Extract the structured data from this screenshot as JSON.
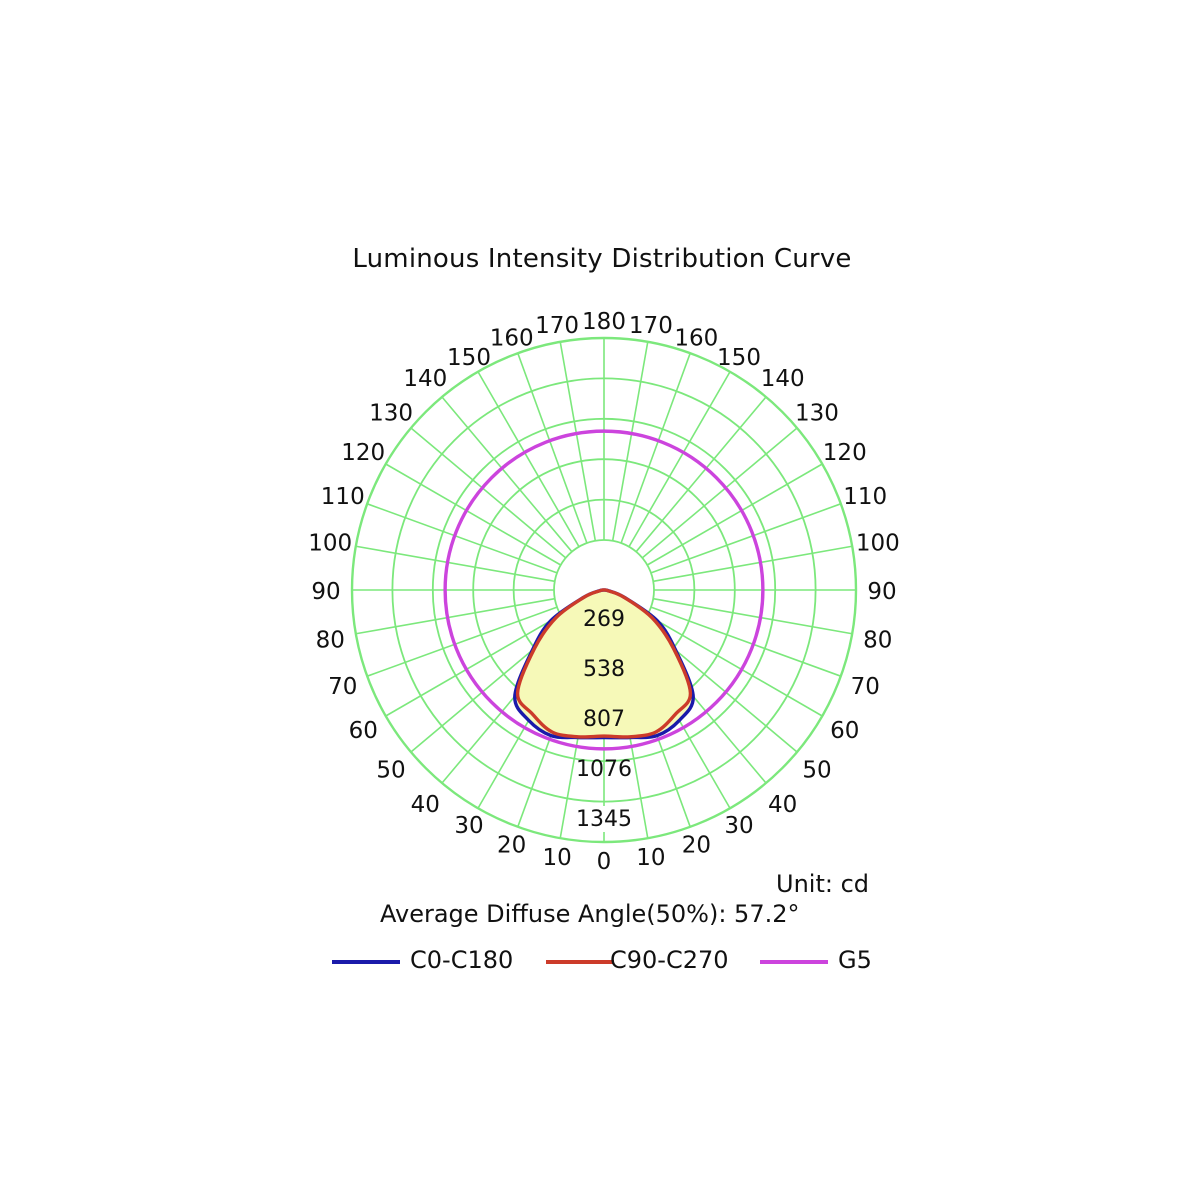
{
  "chart_data": {
    "type": "polar",
    "title": "Luminous Intensity Distribution Curve",
    "unit_label": "Unit: cd",
    "annotation": "Average Diffuse Angle(50%): 57.2°",
    "radial_labels": [
      "269",
      "538",
      "807",
      "1076",
      "1345"
    ],
    "r_max": 1345,
    "angle_labels": [
      "0",
      "10",
      "20",
      "30",
      "40",
      "50",
      "60",
      "70",
      "80",
      "90",
      "100",
      "110",
      "120",
      "130",
      "140",
      "150",
      "160",
      "170",
      "180"
    ],
    "grid": true,
    "legend_position": "bottom",
    "series": [
      {
        "name": "C0-C180",
        "color": "#1a1aaa",
        "angles": [
          0,
          10,
          20,
          30,
          40,
          50,
          60,
          70,
          80,
          90
        ],
        "values": [
          1010,
          1025,
          1060,
          1030,
          950,
          640,
          420,
          150,
          35,
          0
        ]
      },
      {
        "name": "C90-C270",
        "color": "#cc3b2a",
        "angles": [
          0,
          10,
          20,
          30,
          40,
          50,
          60,
          70,
          80,
          90
        ],
        "values": [
          1000,
          1020,
          1035,
          980,
          920,
          620,
          380,
          145,
          30,
          0
        ]
      },
      {
        "name": "G5",
        "color": "#cc44dd",
        "angles": "all",
        "values": [
          1060
        ]
      }
    ]
  }
}
